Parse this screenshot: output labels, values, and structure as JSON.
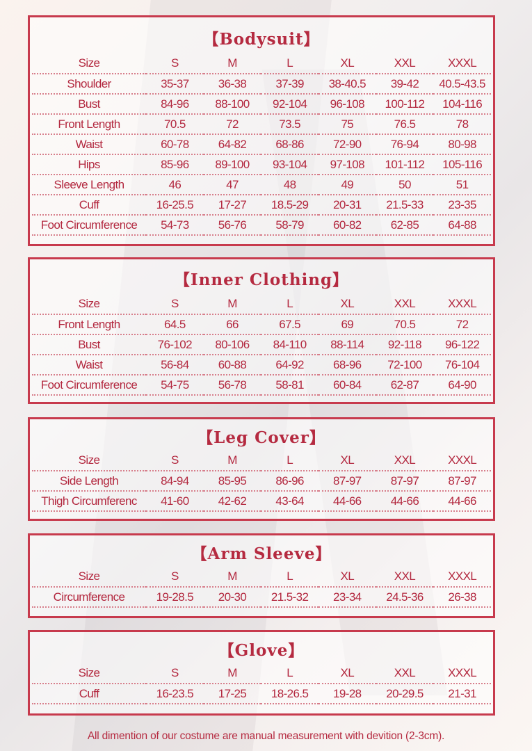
{
  "sections": [
    {
      "title": "【Bodysuit】",
      "rows": [
        [
          "Size",
          "S",
          "M",
          "L",
          "XL",
          "XXL",
          "XXXL"
        ],
        [
          "Shoulder",
          "35-37",
          "36-38",
          "37-39",
          "38-40.5",
          "39-42",
          "40.5-43.5"
        ],
        [
          "Bust",
          "84-96",
          "88-100",
          "92-104",
          "96-108",
          "100-112",
          "104-116"
        ],
        [
          "Front Length",
          "70.5",
          "72",
          "73.5",
          "75",
          "76.5",
          "78"
        ],
        [
          "Waist",
          "60-78",
          "64-82",
          "68-86",
          "72-90",
          "76-94",
          "80-98"
        ],
        [
          "Hips",
          "85-96",
          "89-100",
          "93-104",
          "97-108",
          "101-112",
          "105-116"
        ],
        [
          "Sleeve Length",
          "46",
          "47",
          "48",
          "49",
          "50",
          "51"
        ],
        [
          "Cuff",
          "16-25.5",
          "17-27",
          "18.5-29",
          "20-31",
          "21.5-33",
          "23-35"
        ],
        [
          "Foot Circumference",
          "54-73",
          "56-76",
          "58-79",
          "60-82",
          "62-85",
          "64-88"
        ]
      ]
    },
    {
      "title": "【Inner Clothing】",
      "rows": [
        [
          "Size",
          "S",
          "M",
          "L",
          "XL",
          "XXL",
          "XXXL"
        ],
        [
          "Front Length",
          "64.5",
          "66",
          "67.5",
          "69",
          "70.5",
          "72"
        ],
        [
          "Bust",
          "76-102",
          "80-106",
          "84-110",
          "88-114",
          "92-118",
          "96-122"
        ],
        [
          "Waist",
          "56-84",
          "60-88",
          "64-92",
          "68-96",
          "72-100",
          "76-104"
        ],
        [
          "Foot Circumference",
          "54-75",
          "56-78",
          "58-81",
          "60-84",
          "62-87",
          "64-90"
        ]
      ]
    },
    {
      "title": "【Leg Cover】",
      "rows": [
        [
          "Size",
          "S",
          "M",
          "L",
          "XL",
          "XXL",
          "XXXL"
        ],
        [
          "Side Length",
          "84-94",
          "85-95",
          "86-96",
          "87-97",
          "87-97",
          "87-97"
        ],
        [
          "Thigh Circumferenc",
          "41-60",
          "42-62",
          "43-64",
          "44-66",
          "44-66",
          "44-66"
        ]
      ]
    },
    {
      "title": "【Arm Sleeve】",
      "rows": [
        [
          "Size",
          "S",
          "M",
          "L",
          "XL",
          "XXL",
          "XXXL"
        ],
        [
          "Circumference",
          "19-28.5",
          "20-30",
          "21.5-32",
          "23-34",
          "24.5-36",
          "26-38"
        ]
      ]
    },
    {
      "title": "【Glove】",
      "rows": [
        [
          "Size",
          "S",
          "M",
          "L",
          "XL",
          "XXL",
          "XXXL"
        ],
        [
          "Cuff",
          "16-23.5",
          "17-25",
          "18-26.5",
          "19-28",
          "20-29.5",
          "21-31"
        ]
      ]
    }
  ],
  "footer": "All dimention of our costume are manual measurement with devition (2-3cm).",
  "colors": {
    "accent": "#c73a4d",
    "text": "#b3283f"
  }
}
